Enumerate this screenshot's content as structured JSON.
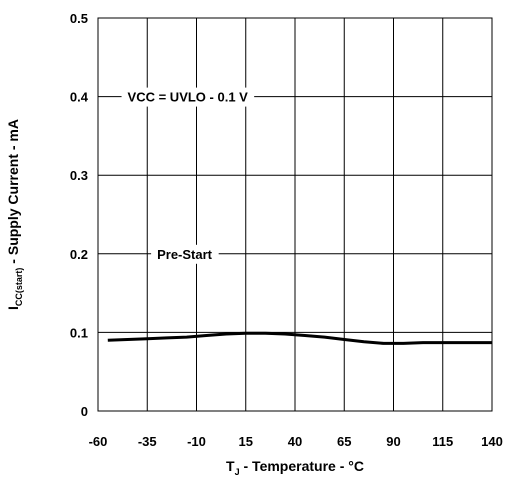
{
  "chart_data": {
    "type": "line",
    "xlabel_main": "T",
    "xlabel_sub": "J",
    "xlabel_rest": " - Temperature - °C",
    "ylabel_main": "I",
    "ylabel_sub": "CC(start)",
    "ylabel_rest": " - Supply Current - mA",
    "xlim": [
      -60,
      140
    ],
    "ylim": [
      0,
      0.5
    ],
    "x_ticks": [
      "-60",
      "-35",
      "-10",
      "15",
      "40",
      "65",
      "90",
      "115",
      "140"
    ],
    "y_ticks": [
      "0",
      "0.1",
      "0.2",
      "0.3",
      "0.4",
      "0.5"
    ],
    "grid": true,
    "annotations": [
      {
        "text": "VCC = UVLO - 0.1 V",
        "x": -45,
        "y": 0.4
      },
      {
        "text": "Pre-Start",
        "x": -30,
        "y": 0.2
      }
    ],
    "series": [
      {
        "x": [
          -55,
          -45,
          -35,
          -25,
          -15,
          -5,
          5,
          15,
          25,
          35,
          45,
          55,
          65,
          75,
          85,
          95,
          105,
          115,
          125,
          140
        ],
        "y": [
          0.09,
          0.091,
          0.092,
          0.093,
          0.094,
          0.096,
          0.098,
          0.099,
          0.099,
          0.098,
          0.096,
          0.094,
          0.091,
          0.088,
          0.086,
          0.086,
          0.087,
          0.087,
          0.087,
          0.087
        ]
      }
    ]
  }
}
